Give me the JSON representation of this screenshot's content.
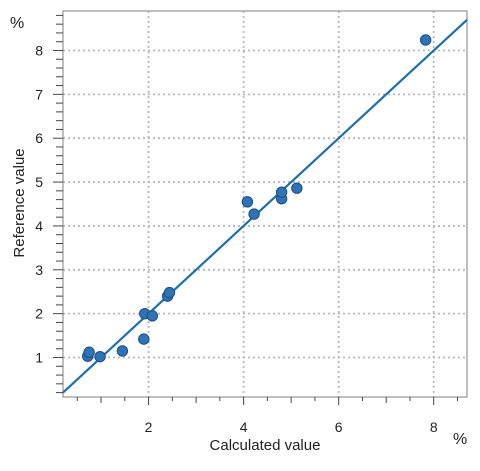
{
  "colors": {
    "point_fill": "#2f73b5",
    "point_stroke": "#184f82",
    "line": "#1f6fa9",
    "grid": "#b8b8b8",
    "frame": "#7f7f7f",
    "text": "#222222"
  },
  "chart_data": {
    "type": "scatter",
    "title": "",
    "xlabel": "Calculated value",
    "ylabel": "Reference value",
    "x_unit": "%",
    "y_unit": "%",
    "xlim": [
      0.2,
      8.7
    ],
    "ylim": [
      0.1,
      8.9
    ],
    "x_ticks": [
      2,
      4,
      6,
      8
    ],
    "y_ticks": [
      1,
      2,
      3,
      4,
      5,
      6,
      7,
      8
    ],
    "x_tick_labels": [
      "2",
      "4",
      "6",
      "8"
    ],
    "y_tick_labels": [
      "1",
      "2",
      "3",
      "4",
      "5",
      "6",
      "7",
      "8"
    ],
    "grid": true,
    "legend": "none",
    "regression_line": {
      "slope": 1.0,
      "intercept": 0.0
    },
    "series": [
      {
        "points": [
          {
            "x": 0.72,
            "y": 1.03
          },
          {
            "x": 0.75,
            "y": 1.12
          },
          {
            "x": 0.98,
            "y": 1.02
          },
          {
            "x": 1.45,
            "y": 1.15
          },
          {
            "x": 1.9,
            "y": 1.42
          },
          {
            "x": 1.92,
            "y": 2.0
          },
          {
            "x": 2.08,
            "y": 1.95
          },
          {
            "x": 2.4,
            "y": 2.4
          },
          {
            "x": 2.44,
            "y": 2.48
          },
          {
            "x": 4.08,
            "y": 4.55
          },
          {
            "x": 4.22,
            "y": 4.27
          },
          {
            "x": 4.8,
            "y": 4.62
          },
          {
            "x": 4.8,
            "y": 4.77
          },
          {
            "x": 5.12,
            "y": 4.86
          },
          {
            "x": 7.83,
            "y": 8.24
          }
        ]
      }
    ]
  }
}
